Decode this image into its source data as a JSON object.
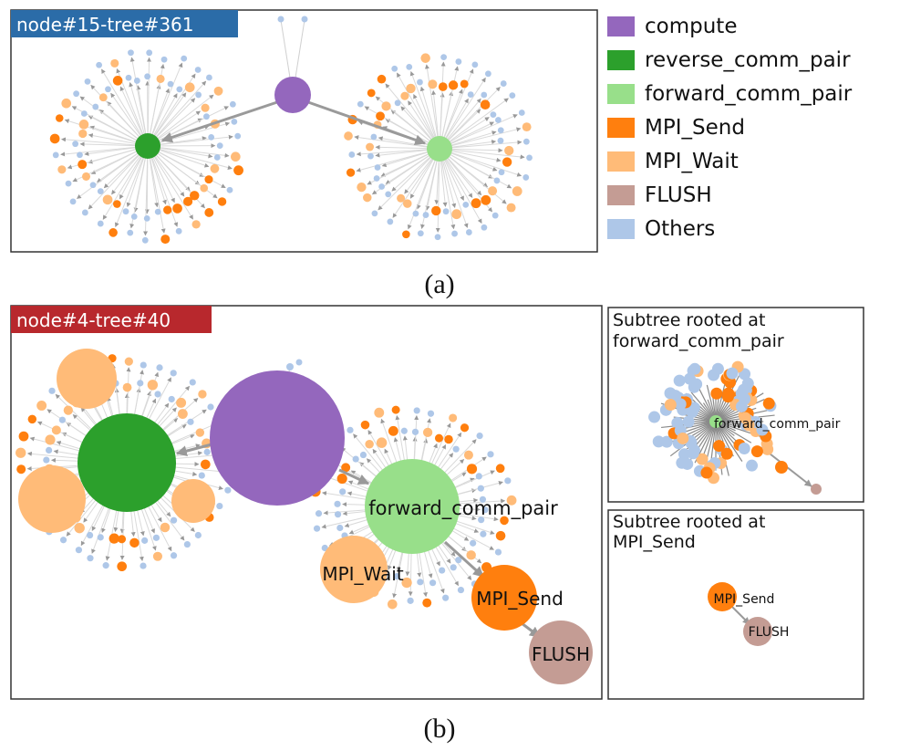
{
  "panel_a": {
    "tag": "node#15-tree#361",
    "tag_color": "#2b6ca8",
    "caption": "(a)"
  },
  "panel_b": {
    "tag": "node#4-tree#40",
    "tag_color": "#b8282d",
    "caption": "(b)",
    "labels": {
      "forward": "forward_comm_pair",
      "wait": "MPI_Wait",
      "send": "MPI_Send",
      "flush": "FLUSH"
    }
  },
  "subtree_forward": {
    "title_line1": "Subtree rooted at",
    "title_line2": "forward_comm_pair",
    "node_label": "forward_comm_pair"
  },
  "subtree_send": {
    "title_line1": "Subtree rooted at",
    "title_line2": "MPI_Send",
    "node_label_send": "MPI_Send",
    "node_label_flush": "FLUSH"
  },
  "legend": [
    {
      "label": "compute",
      "color": "#9467bd"
    },
    {
      "label": "reverse_comm_pair",
      "color": "#2ca02c"
    },
    {
      "label": "forward_comm_pair",
      "color": "#98df8a"
    },
    {
      "label": "MPI_Send",
      "color": "#ff7f0e"
    },
    {
      "label": "MPI_Wait",
      "color": "#ffbb78"
    },
    {
      "label": "FLUSH",
      "color": "#c49c94"
    },
    {
      "label": "Others",
      "color": "#aec7e8"
    }
  ]
}
